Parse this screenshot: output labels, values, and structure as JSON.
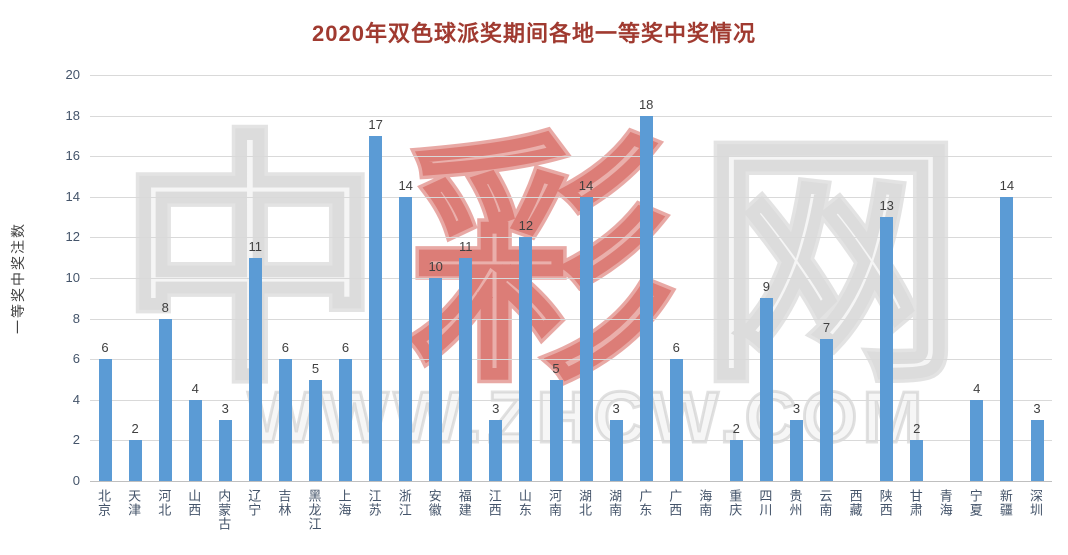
{
  "chart_data": {
    "type": "bar",
    "title": "2020年双色球派奖期间各地一等奖中奖情况",
    "xlabel": "",
    "ylabel": "一等奖中奖注数",
    "ylim": [
      0,
      20
    ],
    "ytick_step": 2,
    "grid": true,
    "legend": "none",
    "bar_color": "#5B9BD5",
    "categories": [
      "北京",
      "天津",
      "河北",
      "山西",
      "内蒙古",
      "辽宁",
      "吉林",
      "黑龙江",
      "上海",
      "江苏",
      "浙江",
      "安徽",
      "福建",
      "江西",
      "山东",
      "河南",
      "湖北",
      "湖南",
      "广东",
      "广西",
      "海南",
      "重庆",
      "四川",
      "贵州",
      "云南",
      "西藏",
      "陕西",
      "甘肃",
      "青海",
      "宁夏",
      "新疆",
      "深圳"
    ],
    "values": [
      6,
      2,
      8,
      4,
      3,
      11,
      6,
      5,
      6,
      17,
      14,
      10,
      11,
      3,
      12,
      5,
      14,
      3,
      18,
      6,
      0,
      2,
      9,
      3,
      7,
      0,
      13,
      2,
      0,
      4,
      14,
      3
    ]
  },
  "watermark": {
    "chars": [
      "中",
      "彩",
      "网"
    ],
    "red_char_index": 1,
    "url": "WWW.ZHCW.COM"
  },
  "colors": {
    "title": "#A03A30",
    "bar": "#5B9BD5",
    "axis_text": "#44546A",
    "value_label_text": "#404040",
    "gridline": "#D9D9D9",
    "axis_line": "#BFBFBF",
    "watermark_gray": "#AFAFAF",
    "watermark_red": "#CD4137"
  }
}
